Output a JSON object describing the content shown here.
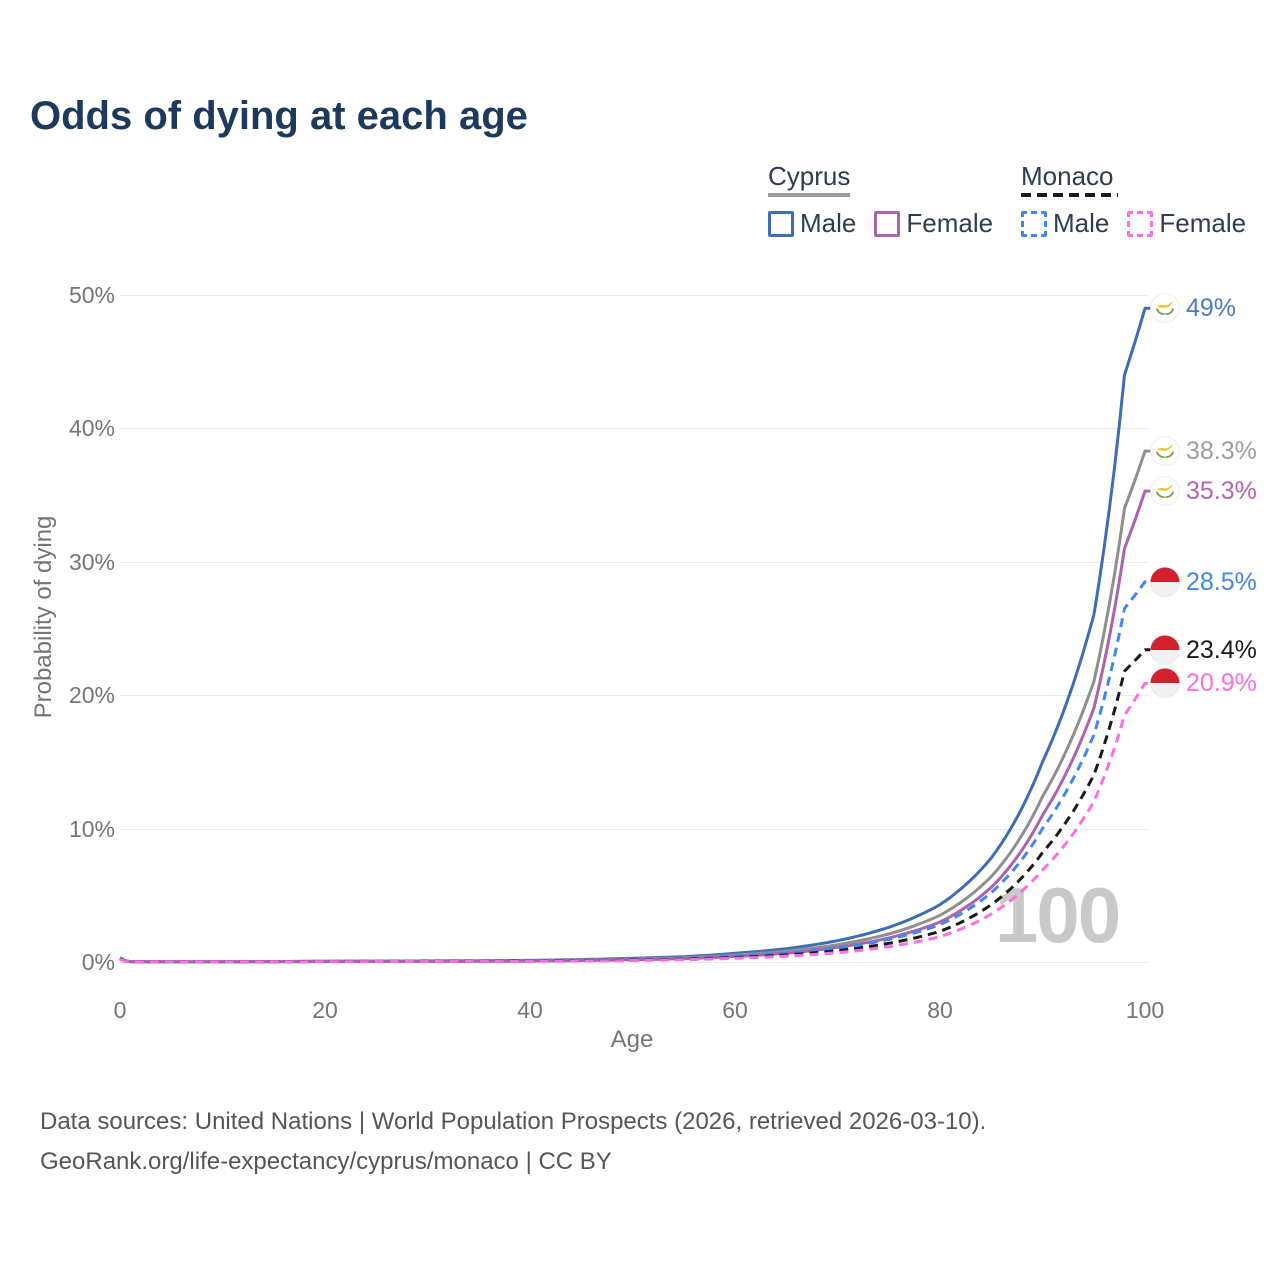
{
  "title": "Odds of dying at each age",
  "legend": {
    "groups": [
      {
        "name": "Cyprus",
        "line_style": "solid",
        "line_color": "#9a9a9a",
        "items": [
          {
            "label": "Male",
            "color": "#3e6db8",
            "style": "solid"
          },
          {
            "label": "Female",
            "color": "#ab64ab",
            "style": "solid"
          }
        ]
      },
      {
        "name": "Monaco",
        "line_style": "dashed",
        "line_color": "#1a1a1a",
        "items": [
          {
            "label": "Male",
            "color": "#4285f4",
            "style": "dashed"
          },
          {
            "label": "Female",
            "color": "#ff6ee0",
            "style": "dashed"
          }
        ]
      }
    ]
  },
  "chart_data": {
    "type": "line",
    "title": "Odds of dying at each age",
    "xlabel": "Age",
    "ylabel": "Probability of dying",
    "xlim": [
      0,
      100
    ],
    "ylim_pct": [
      0,
      50
    ],
    "grid": "horizontal",
    "legend_position": "top-right",
    "watermark": "100",
    "x_ticks": [
      {
        "label": "0",
        "value": 0
      },
      {
        "label": "20",
        "value": 20
      },
      {
        "label": "40",
        "value": 40
      },
      {
        "label": "60",
        "value": 60
      },
      {
        "label": "80",
        "value": 80
      },
      {
        "label": "100",
        "value": 100
      }
    ],
    "y_ticks": [
      {
        "label": "0%",
        "value": 0
      },
      {
        "label": "10%",
        "value": 10
      },
      {
        "label": "20%",
        "value": 20
      },
      {
        "label": "30%",
        "value": 30
      },
      {
        "label": "40%",
        "value": 40
      },
      {
        "label": "50%",
        "value": 50
      }
    ],
    "ages": [
      0,
      1,
      5,
      10,
      20,
      30,
      40,
      50,
      55,
      60,
      65,
      70,
      75,
      80,
      85,
      90,
      95,
      98,
      100
    ],
    "series": [
      {
        "name": "Cyprus Male",
        "country": "Cyprus",
        "sex": "Male",
        "color": "#3e6db8",
        "label_color": "#4d79cb",
        "dash": false,
        "flag": "cyprus",
        "end_label": "49%",
        "end_value_pct": 49,
        "values_pct": [
          0.32,
          0.03,
          0.02,
          0.02,
          0.06,
          0.08,
          0.12,
          0.28,
          0.4,
          0.65,
          1.0,
          1.6,
          2.6,
          4.3,
          7.8,
          15.0,
          26.0,
          44.0,
          49.0
        ]
      },
      {
        "name": "Cyprus Both sexes",
        "country": "Cyprus",
        "sex": "Both",
        "color": "#8f8f8f",
        "label_color": "#9e9e9e",
        "dash": false,
        "flag": "cyprus",
        "end_label": "38.3%",
        "end_value_pct": 38.3,
        "values_pct": [
          0.29,
          0.03,
          0.02,
          0.02,
          0.05,
          0.06,
          0.09,
          0.22,
          0.32,
          0.52,
          0.8,
          1.3,
          2.1,
          3.5,
          6.4,
          12.4,
          21.0,
          34.0,
          38.3
        ]
      },
      {
        "name": "Cyprus Female",
        "country": "Cyprus",
        "sex": "Female",
        "color": "#ab64ab",
        "label_color": "#b564b5",
        "dash": false,
        "flag": "cyprus",
        "end_label": "35.3%",
        "end_value_pct": 35.3,
        "values_pct": [
          0.26,
          0.02,
          0.01,
          0.01,
          0.03,
          0.04,
          0.07,
          0.17,
          0.25,
          0.42,
          0.66,
          1.1,
          1.8,
          3.0,
          5.6,
          11.0,
          19.0,
          31.0,
          35.3
        ]
      },
      {
        "name": "Monaco Male",
        "country": "Monaco",
        "sex": "Male",
        "color": "#4285f4",
        "label_color": "#4285f4",
        "dash": true,
        "flag": "monaco",
        "end_label": "28.5%",
        "end_value_pct": 28.5,
        "values_pct": [
          0.24,
          0.02,
          0.01,
          0.02,
          0.05,
          0.06,
          0.08,
          0.18,
          0.26,
          0.42,
          0.65,
          1.05,
          1.7,
          2.8,
          5.2,
          10.0,
          17.0,
          26.5,
          28.5
        ]
      },
      {
        "name": "Monaco Both sexes",
        "country": "Monaco",
        "sex": "Both",
        "color": "#1a1a1a",
        "label_color": "#1a1a1a",
        "dash": true,
        "flag": "monaco",
        "end_label": "23.4%",
        "end_value_pct": 23.4,
        "values_pct": [
          0.21,
          0.02,
          0.01,
          0.01,
          0.04,
          0.05,
          0.07,
          0.14,
          0.21,
          0.34,
          0.53,
          0.85,
          1.4,
          2.3,
          4.3,
          8.2,
          14.0,
          21.8,
          23.4
        ]
      },
      {
        "name": "Monaco Female",
        "country": "Monaco",
        "sex": "Female",
        "color": "#ff6ee0",
        "label_color": "#ff6ee0",
        "dash": true,
        "flag": "monaco",
        "end_label": "20.9%",
        "end_value_pct": 20.9,
        "values_pct": [
          0.19,
          0.02,
          0.01,
          0.01,
          0.03,
          0.04,
          0.05,
          0.11,
          0.17,
          0.28,
          0.44,
          0.7,
          1.15,
          1.9,
          3.6,
          6.9,
          12.0,
          18.5,
          20.9
        ]
      }
    ]
  },
  "footer": {
    "line1": "Data sources: United Nations | World Population Prospects (2026, retrieved 2026-03-10).",
    "line2": "GeoRank.org/life-expectancy/cyprus/monaco | CC BY"
  }
}
